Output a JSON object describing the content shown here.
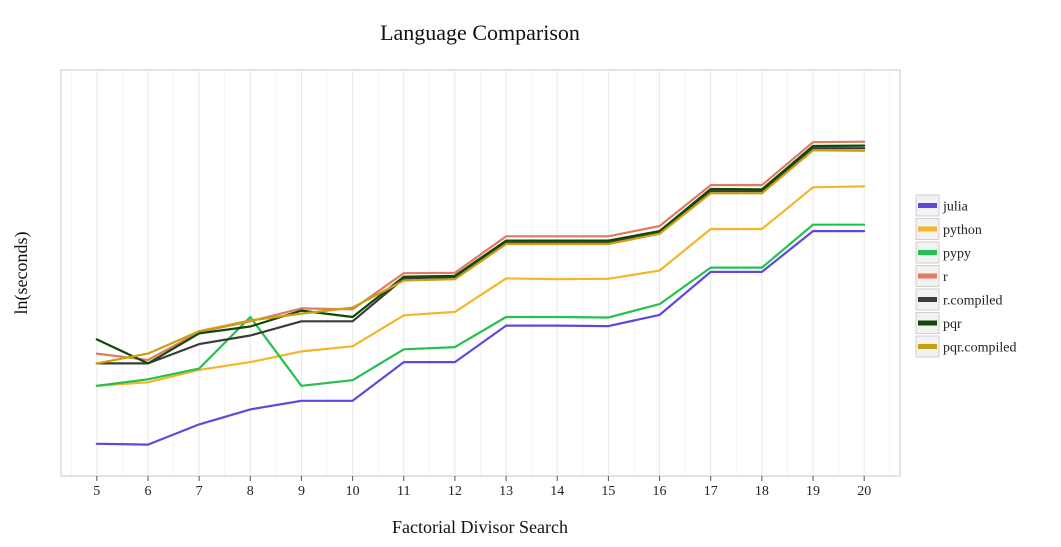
{
  "chart_data": {
    "type": "line",
    "title": "Language Comparison",
    "xlabel": "Factorial Divisor Search",
    "ylabel": "ln(seconds)",
    "x": [
      5,
      6,
      7,
      8,
      9,
      10,
      11,
      12,
      13,
      14,
      15,
      16,
      17,
      18,
      19,
      20
    ],
    "xlim": [
      4.3,
      20.7
    ],
    "ylim": [
      -4.3,
      5.15
    ],
    "grid": true,
    "legend_position": "right",
    "series": [
      {
        "name": "julia",
        "color": "#6148DC",
        "values": [
          -3.55,
          -3.57,
          -3.1,
          -2.75,
          -2.55,
          -2.55,
          -1.65,
          -1.65,
          -0.8,
          -0.8,
          -0.81,
          -0.55,
          0.45,
          0.45,
          1.4,
          1.4
        ]
      },
      {
        "name": "python",
        "color": "#F5B526",
        "values": [
          -2.2,
          -2.12,
          -1.83,
          -1.65,
          -1.4,
          -1.28,
          -0.56,
          -0.48,
          0.3,
          0.28,
          0.29,
          0.48,
          1.45,
          1.45,
          2.42,
          2.44
        ]
      },
      {
        "name": "pypy",
        "color": "#25C04E",
        "values": [
          -2.2,
          -2.05,
          -1.8,
          -0.6,
          -2.2,
          -2.07,
          -1.35,
          -1.3,
          -0.6,
          -0.6,
          -0.61,
          -0.3,
          0.55,
          0.55,
          1.55,
          1.55
        ]
      },
      {
        "name": "r",
        "color": "#E07B60",
        "values": [
          -1.45,
          -1.6,
          -0.95,
          -0.7,
          -0.4,
          -0.42,
          0.42,
          0.43,
          1.28,
          1.28,
          1.28,
          1.52,
          2.47,
          2.47,
          3.47,
          3.48
        ]
      },
      {
        "name": "r.compiled",
        "color": "#3B3B3B",
        "values": [
          -1.68,
          -1.68,
          -1.23,
          -1.03,
          -0.7,
          -0.7,
          0.3,
          0.33,
          1.13,
          1.13,
          1.13,
          1.38,
          2.33,
          2.33,
          3.33,
          3.33
        ]
      },
      {
        "name": "pqr",
        "color": "#0F4A08",
        "values": [
          -1.12,
          -1.68,
          -0.98,
          -0.82,
          -0.45,
          -0.6,
          0.34,
          0.36,
          1.18,
          1.18,
          1.18,
          1.4,
          2.38,
          2.37,
          3.38,
          3.39
        ]
      },
      {
        "name": "pqr.compiled",
        "color": "#C9A010",
        "values": [
          -1.68,
          -1.45,
          -0.93,
          -0.68,
          -0.52,
          -0.38,
          0.25,
          0.28,
          1.1,
          1.1,
          1.1,
          1.34,
          2.28,
          2.28,
          3.28,
          3.27
        ]
      }
    ]
  }
}
